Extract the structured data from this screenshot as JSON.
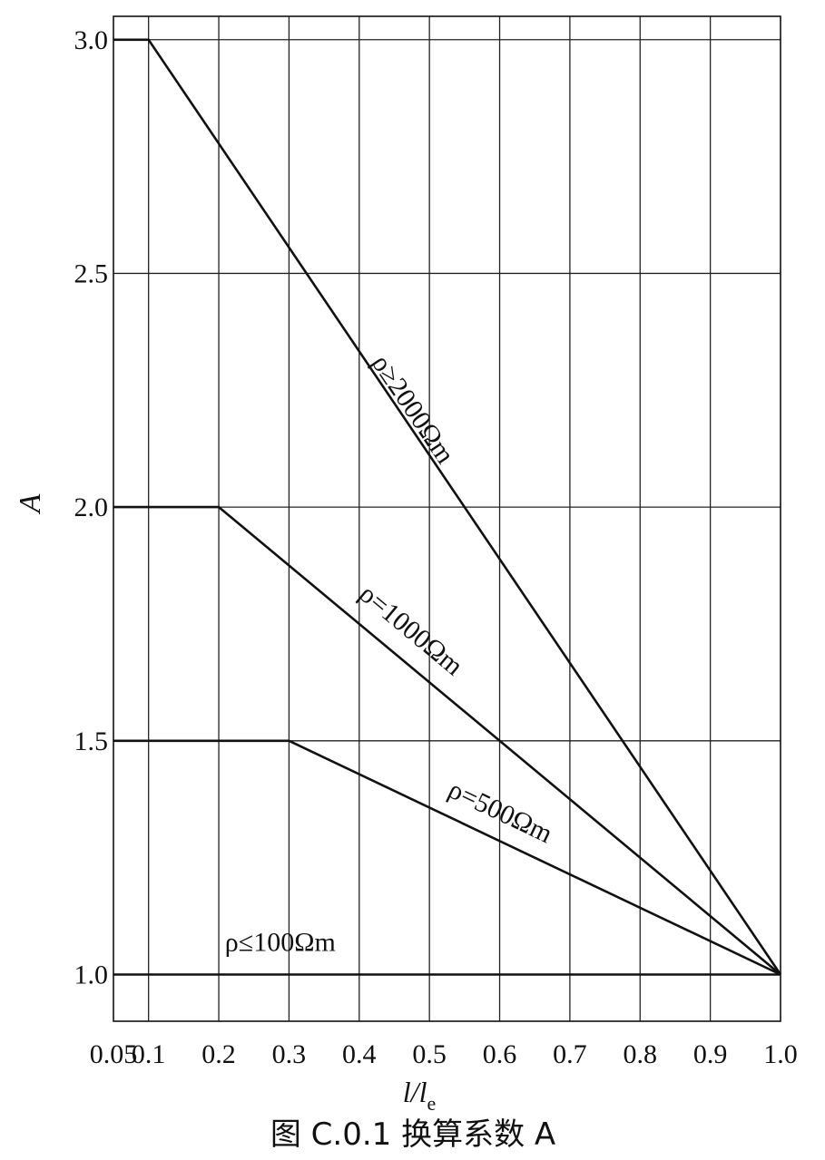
{
  "chart_data": {
    "type": "line",
    "title": "",
    "xlabel": "l/l",
    "xlabel_sub": "e",
    "ylabel": "A",
    "xlim": [
      0.05,
      1.0
    ],
    "ylim": [
      0.9,
      3.05
    ],
    "grid": true,
    "x_ticks": [
      0.05,
      0.1,
      0.2,
      0.3,
      0.4,
      0.5,
      0.6,
      0.7,
      0.8,
      0.9,
      1.0
    ],
    "x_tick_labels": [
      "0.05",
      "0.1",
      "0.2",
      "0.3",
      "0.4",
      "0.5",
      "0.6",
      "0.7",
      "0.8",
      "0.9",
      "1.0"
    ],
    "y_ticks": [
      1.0,
      1.5,
      2.0,
      2.5,
      3.0
    ],
    "y_tick_labels": [
      "1.0",
      "1.5",
      "2.0",
      "2.5",
      "3.0"
    ],
    "series": [
      {
        "name": "ρ≥2000Ωm",
        "x": [
          0.05,
          0.1,
          1.0
        ],
        "y": [
          3.0,
          3.0,
          1.0
        ]
      },
      {
        "name": "ρ=1000Ωm",
        "x": [
          0.05,
          0.2,
          1.0
        ],
        "y": [
          2.0,
          2.0,
          1.0
        ]
      },
      {
        "name": "ρ=500Ωm",
        "x": [
          0.05,
          0.3,
          1.0
        ],
        "y": [
          1.5,
          1.5,
          1.0
        ]
      },
      {
        "name": "ρ≤100Ωm",
        "x": [
          0.05,
          1.0
        ],
        "y": [
          1.0,
          1.0
        ]
      }
    ]
  },
  "caption": "图 C.0.1   换算系数 A"
}
